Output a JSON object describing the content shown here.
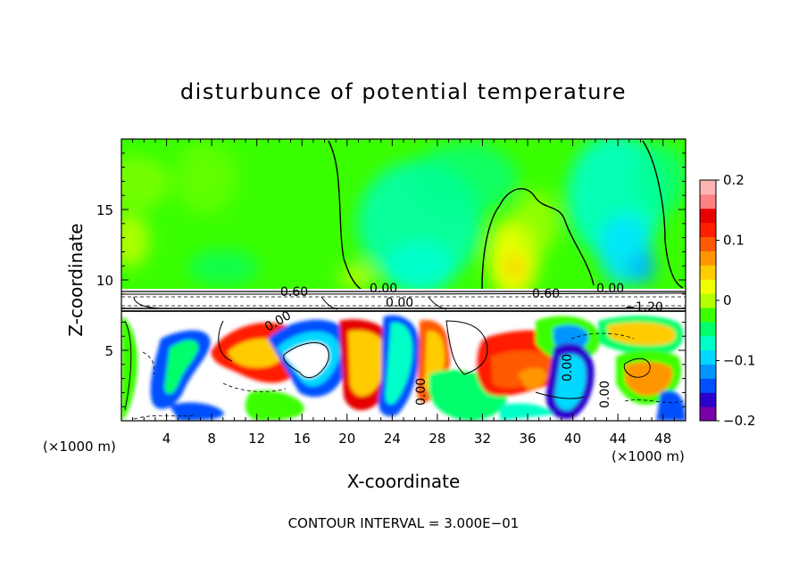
{
  "chart_data": {
    "type": "heatmap",
    "title": "disturbunce of potential temperature",
    "xlabel": "X-coordinate",
    "ylabel": "Z-coordinate",
    "x_unit": "(×1000 m)",
    "y_unit": "(×1000 m)",
    "xlim": [
      0,
      50
    ],
    "ylim": [
      0,
      20
    ],
    "x_ticks": [
      "4",
      "8",
      "12",
      "16",
      "20",
      "24",
      "28",
      "32",
      "36",
      "40",
      "44",
      "48"
    ],
    "y_ticks": [
      "5",
      "10",
      "15"
    ],
    "colorbar": {
      "range": [
        -0.2,
        0.2
      ],
      "tick_labels": [
        "0.2",
        "0.1",
        "0",
        "−0.1",
        "−0.2"
      ],
      "colors": [
        "#7a00a8",
        "#2a00cc",
        "#0050ff",
        "#0096ff",
        "#00d8ff",
        "#00ffc8",
        "#00ff6a",
        "#3cff00",
        "#b4ff00",
        "#f0ff00",
        "#ffcc00",
        "#ff9600",
        "#ff5a00",
        "#ff1e00",
        "#e60000",
        "#ff8080",
        "#ffb4b4"
      ]
    },
    "contour_labels": [
      "0.60",
      "0.00",
      "0.00",
      "0.60",
      "0.00",
      "−1.20",
      "0.00",
      "0.00",
      "0.00",
      "0.00"
    ],
    "footer": "CONTOUR INTERVAL = 3.000E−01"
  }
}
